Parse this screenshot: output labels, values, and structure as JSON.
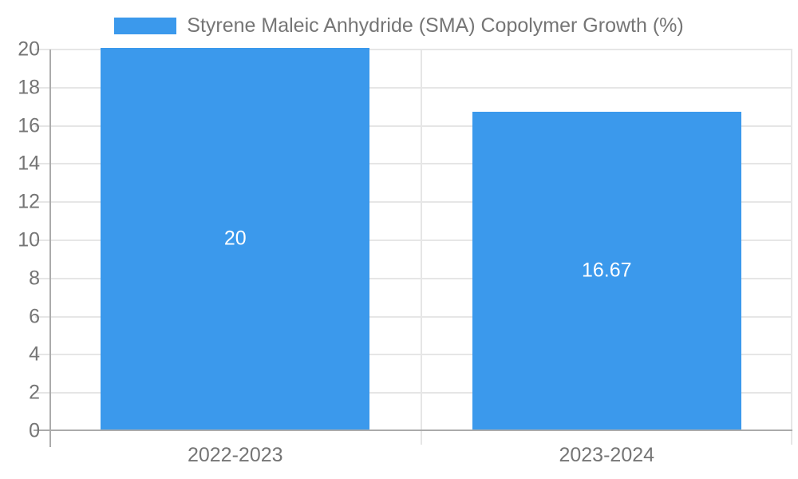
{
  "legend": {
    "label": "Styrene Maleic Anhydride (SMA) Copolymer Growth (%)"
  },
  "chart_data": {
    "type": "bar",
    "title": "Styrene Maleic Anhydride (SMA) Copolymer Growth (%)",
    "categories": [
      "2022-2023",
      "2023-2024"
    ],
    "values": [
      20,
      16.67
    ],
    "bar_labels": [
      "20",
      "16.67"
    ],
    "xlabel": "",
    "ylabel": "",
    "ylim": [
      0,
      20
    ],
    "ytick_step": 2,
    "ytick_labels": [
      "0",
      "2",
      "4",
      "6",
      "8",
      "10",
      "12",
      "14",
      "16",
      "18",
      "20"
    ],
    "grid": true,
    "legend_position": "top",
    "colors": {
      "bar": "#3b99ec",
      "grid": "#e6e6e6",
      "axis": "#ababab",
      "text": "#757575",
      "bar_label_text": "#ffffff"
    }
  }
}
